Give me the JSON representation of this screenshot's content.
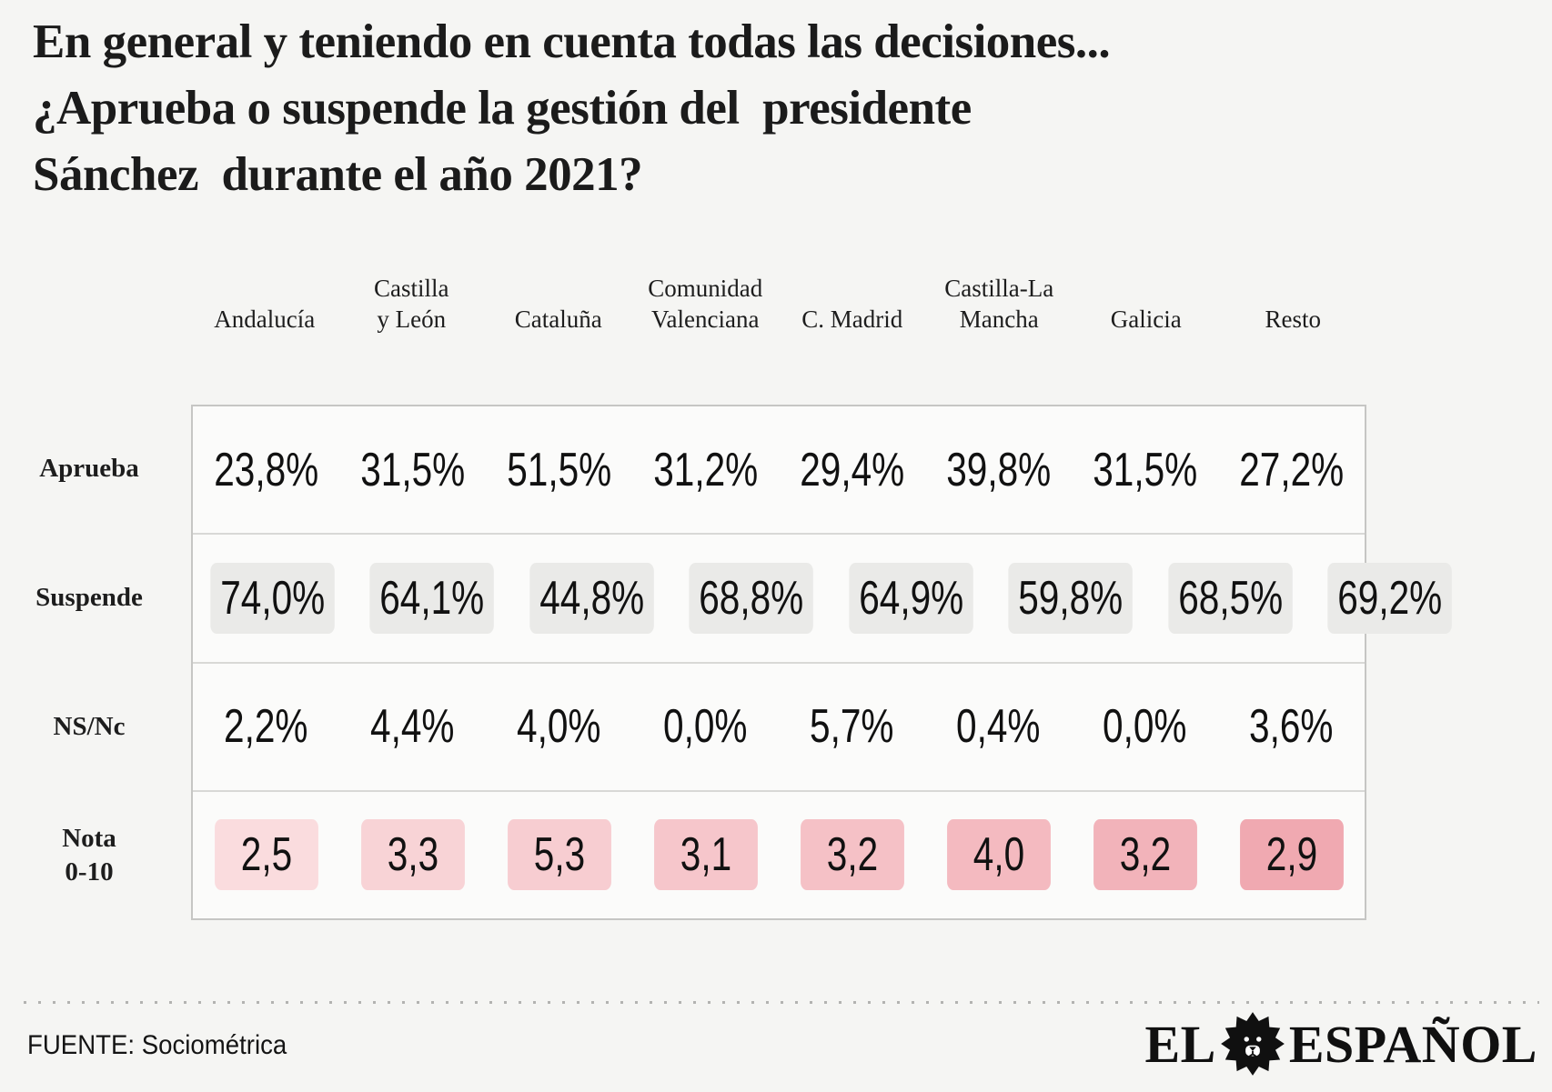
{
  "title": {
    "lines": [
      "En general y teniendo en cuenta todas las decisiones...",
      "¿Aprueba o suspende la gestión del  presidente",
      "Sánchez  durante el año 2021?"
    ]
  },
  "table": {
    "columns": [
      {
        "lines": [
          "Andalucía"
        ]
      },
      {
        "lines": [
          "Castilla",
          "y León"
        ]
      },
      {
        "lines": [
          "Cataluña"
        ]
      },
      {
        "lines": [
          "Comunidad",
          "Valenciana"
        ]
      },
      {
        "lines": [
          "C. Madrid"
        ]
      },
      {
        "lines": [
          "Castilla-La",
          "Mancha"
        ]
      },
      {
        "lines": [
          "Galicia"
        ]
      },
      {
        "lines": [
          "Resto"
        ]
      }
    ],
    "rows": [
      {
        "label_lines": [
          "Aprueba"
        ],
        "style": "plain",
        "values": [
          "23,8%",
          "31,5%",
          "51,5%",
          "31,2%",
          "29,4%",
          "39,8%",
          "31,5%",
          "27,2%"
        ]
      },
      {
        "label_lines": [
          "Suspende"
        ],
        "style": "chip-gray",
        "values": [
          "74,0%",
          "64,1%",
          "44,8%",
          "68,8%",
          "64,9%",
          "59,8%",
          "68,5%",
          "69,2%"
        ]
      },
      {
        "label_lines": [
          "NS/Nc"
        ],
        "style": "plain",
        "values": [
          "2,2%",
          "4,4%",
          "4,0%",
          "0,0%",
          "5,7%",
          "0,4%",
          "0,0%",
          "3,6%"
        ]
      },
      {
        "label_lines": [
          "Nota",
          "0-10"
        ],
        "style": "chip-pink",
        "values": [
          "2,5",
          "3,3",
          "5,3",
          "3,1",
          "3,2",
          "4,0",
          "3,2",
          "2,9"
        ],
        "chip_colors": [
          "#fadcde",
          "#f8d3d6",
          "#f7cdd1",
          "#f6c6cb",
          "#f5c1c6",
          "#f4bac0",
          "#f2b3ba",
          "#f0a9b1"
        ]
      }
    ]
  },
  "footer": {
    "source": "FUENTE: Sociométrica",
    "brand_el": "EL",
    "brand_espanol": "ESPAÑOL",
    "lion_icon": "lion-icon"
  },
  "colors": {
    "page_bg": "#f5f5f3",
    "table_bg": "#fbfbfa",
    "table_border": "#c6c6c4",
    "row_separator": "#d8d8d6",
    "suspende_chip": "#eaeae8",
    "dotted_line": "#b3b3b1",
    "text": "#161616"
  },
  "chart_data": {
    "type": "table",
    "title": "En general y teniendo en cuenta todas las decisiones... ¿Aprueba o suspende la gestión del presidente Sánchez durante el año 2021?",
    "categories": [
      "Andalucía",
      "Castilla y León",
      "Cataluña",
      "Comunidad Valenciana",
      "C. Madrid",
      "Castilla-La Mancha",
      "Galicia",
      "Resto"
    ],
    "series": [
      {
        "name": "Aprueba",
        "unit": "%",
        "values": [
          23.8,
          31.5,
          51.5,
          31.2,
          29.4,
          39.8,
          31.5,
          27.2
        ]
      },
      {
        "name": "Suspende",
        "unit": "%",
        "values": [
          74.0,
          64.1,
          44.8,
          68.8,
          64.9,
          59.8,
          68.5,
          69.2
        ]
      },
      {
        "name": "NS/Nc",
        "unit": "%",
        "values": [
          2.2,
          4.4,
          4.0,
          0.0,
          5.7,
          0.4,
          0.0,
          3.6
        ]
      },
      {
        "name": "Nota 0-10",
        "unit": "score 0-10",
        "values": [
          2.5,
          3.3,
          5.3,
          3.1,
          3.2,
          4.0,
          3.2,
          2.9
        ]
      }
    ],
    "source": "Sociométrica",
    "legend_position": "none",
    "grid": "horizontal-row-separators"
  }
}
